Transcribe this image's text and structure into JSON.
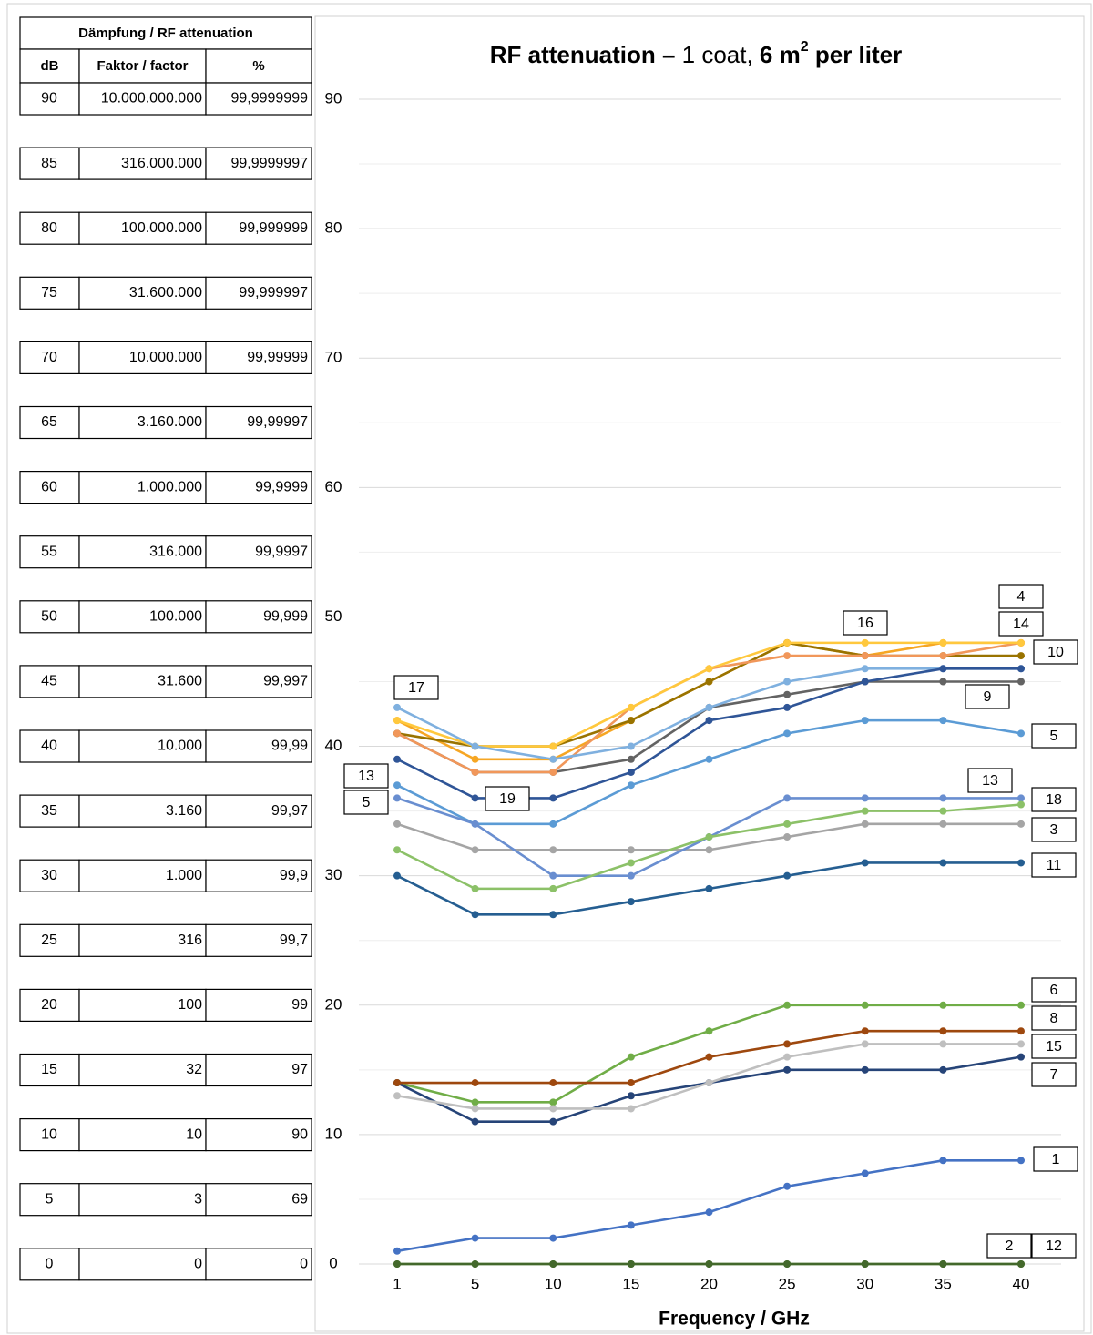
{
  "table": {
    "title": "Dämpfung / RF attenuation",
    "header": [
      "dB",
      "Faktor / factor",
      "%"
    ],
    "rows": [
      [
        "90",
        "10.000.000.000",
        "99,9999999"
      ],
      [
        "85",
        "316.000.000",
        "99,9999997"
      ],
      [
        "80",
        "100.000.000",
        "99,999999"
      ],
      [
        "75",
        "31.600.000",
        "99,999997"
      ],
      [
        "70",
        "10.000.000",
        "99,99999"
      ],
      [
        "65",
        "3.160.000",
        "99,99997"
      ],
      [
        "60",
        "1.000.000",
        "99,9999"
      ],
      [
        "55",
        "316.000",
        "99,9997"
      ],
      [
        "50",
        "100.000",
        "99,999"
      ],
      [
        "45",
        "31.600",
        "99,997"
      ],
      [
        "40",
        "10.000",
        "99,99"
      ],
      [
        "35",
        "3.160",
        "99,97"
      ],
      [
        "30",
        "1.000",
        "99,9"
      ],
      [
        "25",
        "316",
        "99,7"
      ],
      [
        "20",
        "100",
        "99"
      ],
      [
        "15",
        "32",
        "97"
      ],
      [
        "10",
        "10",
        "90"
      ],
      [
        "5",
        "3",
        "69"
      ],
      [
        "0",
        "0",
        "0"
      ]
    ]
  },
  "chart_data": {
    "type": "line",
    "title": [
      "RF attenuation –",
      " 1 coat, ",
      "6 m",
      "2",
      " per liter"
    ],
    "x_label": "Frequency / GHz",
    "categories": [
      1,
      5,
      10,
      15,
      20,
      25,
      30,
      35,
      40
    ],
    "ylim": [
      0,
      90
    ],
    "yticks": [
      0,
      10,
      20,
      30,
      40,
      50,
      60,
      70,
      80,
      90
    ],
    "minor_yticks": [
      5,
      15,
      25,
      35,
      45,
      55,
      65,
      75,
      85
    ],
    "grid": true,
    "series": [
      {
        "name": "1",
        "color": "#4472c4",
        "values": [
          1,
          2,
          2,
          3,
          4,
          6,
          7,
          8,
          8
        ]
      },
      {
        "name": "2",
        "color": "#548235",
        "values": [
          0,
          0,
          0,
          0,
          0,
          0,
          0,
          0,
          0
        ]
      },
      {
        "name": "3",
        "color": "#a5a5a5",
        "values": [
          34,
          32,
          32,
          32,
          32,
          33,
          34,
          34,
          34
        ]
      },
      {
        "name": "4",
        "color": "#f6a623",
        "values": [
          42,
          39,
          39,
          42,
          45,
          48,
          47,
          48,
          48
        ]
      },
      {
        "name": "5",
        "color": "#5b9bd5",
        "values": [
          37,
          34,
          34,
          37,
          39,
          41,
          42,
          42,
          41
        ]
      },
      {
        "name": "6",
        "color": "#70ad47",
        "values": [
          14,
          12.5,
          12.5,
          16,
          18,
          20,
          20,
          20,
          20
        ]
      },
      {
        "name": "7",
        "color": "#264478",
        "values": [
          14,
          11,
          11,
          13,
          14,
          15,
          15,
          15,
          16
        ]
      },
      {
        "name": "8",
        "color": "#9e480e",
        "values": [
          14,
          14,
          14,
          14,
          16,
          17,
          18,
          18,
          18
        ]
      },
      {
        "name": "9",
        "color": "#636363",
        "values": [
          41,
          38,
          38,
          39,
          43,
          44,
          45,
          45,
          45
        ]
      },
      {
        "name": "10",
        "color": "#997300",
        "values": [
          41,
          40,
          40,
          42,
          45,
          48,
          47,
          47,
          47
        ]
      },
      {
        "name": "11",
        "color": "#255e91",
        "values": [
          30,
          27,
          27,
          28,
          29,
          30,
          31,
          31,
          31
        ]
      },
      {
        "name": "12",
        "color": "#43682b",
        "values": [
          0,
          0,
          0,
          0,
          0,
          0,
          0,
          0,
          0
        ]
      },
      {
        "name": "13",
        "color": "#698ed0",
        "values": [
          36,
          34,
          30,
          30,
          33,
          36,
          36,
          36,
          36
        ]
      },
      {
        "name": "14",
        "color": "#f1975a",
        "values": [
          41,
          38,
          38,
          43,
          46,
          47,
          47,
          47,
          48
        ]
      },
      {
        "name": "15",
        "color": "#bfbfbf",
        "values": [
          13,
          12,
          12,
          12,
          14,
          16,
          17,
          17,
          17
        ]
      },
      {
        "name": "16",
        "color": "#ffc83d",
        "values": [
          42,
          40,
          40,
          43,
          46,
          48,
          48,
          48,
          48
        ]
      },
      {
        "name": "17",
        "color": "#7fb0df",
        "values": [
          43,
          40,
          39,
          40,
          43,
          45,
          46,
          46,
          46
        ]
      },
      {
        "name": "18",
        "color": "#8cc168",
        "values": [
          32,
          29,
          29,
          31,
          33,
          34,
          35,
          35,
          35.5
        ]
      },
      {
        "name": "19",
        "color": "#2f5597",
        "values": [
          39,
          36,
          36,
          38,
          42,
          43,
          45,
          46,
          46
        ]
      }
    ]
  }
}
